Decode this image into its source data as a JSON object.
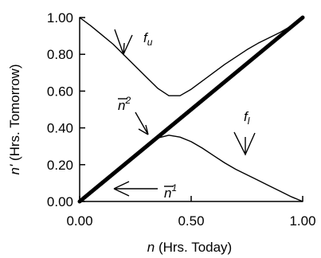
{
  "chart_data": {
    "type": "line",
    "xlabel_var": "n",
    "xlabel_text": " (Hrs. Today)",
    "ylabel_var": "n'",
    "ylabel_text": " (Hrs. Tomorrow)",
    "xlim": [
      0,
      1
    ],
    "ylim": [
      0,
      1
    ],
    "x_ticks": [
      "0.00",
      "0.50",
      "1.00"
    ],
    "y_ticks": [
      "0.00",
      "0.20",
      "0.40",
      "0.60",
      "0.80",
      "1.00"
    ],
    "x_tick_values": [
      0,
      0.5,
      1
    ],
    "y_tick_values": [
      0,
      0.2,
      0.4,
      0.6,
      0.8,
      1.0
    ],
    "grid": false,
    "series": [
      {
        "name": "f_u",
        "x": [
          0.0,
          0.05,
          0.1,
          0.15,
          0.2,
          0.25,
          0.3,
          0.35,
          0.4,
          0.45,
          0.5,
          0.55,
          0.6,
          0.65,
          0.7,
          0.75,
          0.8,
          0.85,
          0.9,
          0.95,
          1.0
        ],
        "y": [
          1.0,
          0.955,
          0.905,
          0.855,
          0.795,
          0.735,
          0.675,
          0.615,
          0.575,
          0.575,
          0.61,
          0.655,
          0.7,
          0.745,
          0.785,
          0.825,
          0.86,
          0.89,
          0.92,
          0.955,
          1.0
        ]
      },
      {
        "name": "diagonal",
        "x": [
          0.0,
          1.0
        ],
        "y": [
          0.0,
          1.0
        ]
      },
      {
        "name": "f_l",
        "x": [
          0.0,
          0.05,
          0.1,
          0.15,
          0.2,
          0.25,
          0.3,
          0.35,
          0.4,
          0.45,
          0.5,
          0.55,
          0.6,
          0.65,
          0.7,
          0.75,
          0.8,
          0.85,
          0.9,
          0.95,
          1.0
        ],
        "y": [
          0.0,
          0.05,
          0.1,
          0.15,
          0.2,
          0.255,
          0.305,
          0.345,
          0.36,
          0.35,
          0.325,
          0.29,
          0.25,
          0.21,
          0.175,
          0.145,
          0.115,
          0.085,
          0.055,
          0.025,
          0.0
        ]
      }
    ],
    "annotations": {
      "fu": {
        "base": "f",
        "sub": "u"
      },
      "fl": {
        "base": "f",
        "sub": "l"
      },
      "n2": {
        "base": "n",
        "sup": "2"
      },
      "n1": {
        "base": "n",
        "sup": "1"
      }
    }
  }
}
